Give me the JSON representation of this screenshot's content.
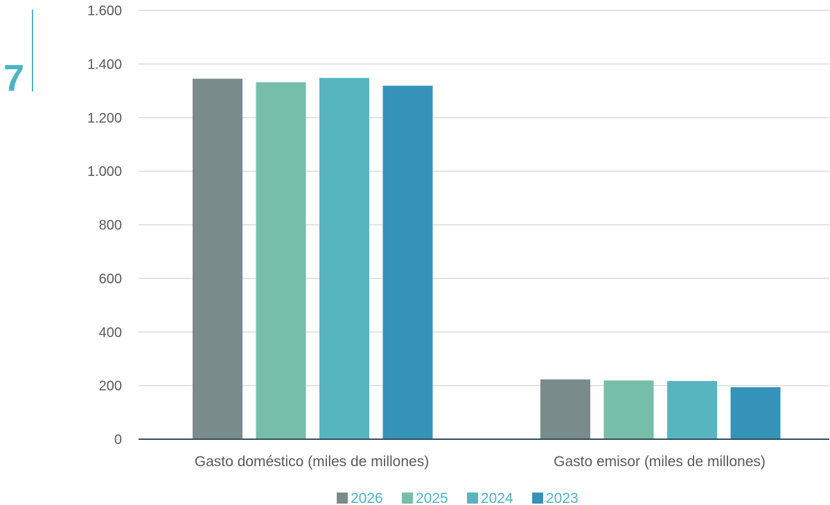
{
  "page_marker": {
    "number": "7"
  },
  "colors": {
    "accent": "#4fb3c4",
    "grid": "#d9d9d9",
    "axis": "#2f4f5f",
    "series": [
      "#7a8b8c",
      "#76bea7",
      "#57b5c0",
      "#3593ba"
    ]
  },
  "chart_data": {
    "type": "bar",
    "categories": [
      "Gasto doméstico (miles de millones)",
      "Gasto emisor (miles de millones)"
    ],
    "series": [
      {
        "name": "2026",
        "values": [
          1345,
          223
        ]
      },
      {
        "name": "2025",
        "values": [
          1332,
          219
        ]
      },
      {
        "name": "2024",
        "values": [
          1348,
          217
        ]
      },
      {
        "name": "2023",
        "values": [
          1319,
          194
        ]
      }
    ],
    "ylim": [
      0,
      1600
    ],
    "yticks": [
      0,
      200,
      400,
      600,
      800,
      1000,
      1200,
      1400,
      1600
    ],
    "ytick_labels": [
      "0",
      "200",
      "400",
      "600",
      "800",
      "1.000",
      "1.200",
      "1.400",
      "1.600"
    ],
    "grid": true,
    "legend": "bottom-center",
    "title": "",
    "xlabel": "",
    "ylabel": ""
  }
}
